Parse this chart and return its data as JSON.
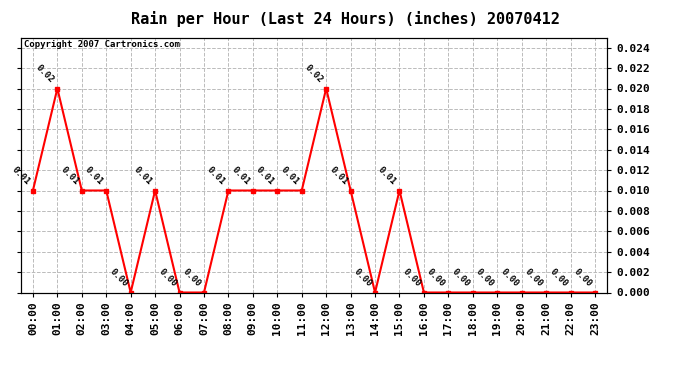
{
  "title": "Rain per Hour (Last 24 Hours) (inches) 20070412",
  "copyright": "Copyright 2007 Cartronics.com",
  "hours": [
    "00:00",
    "01:00",
    "02:00",
    "03:00",
    "04:00",
    "05:00",
    "06:00",
    "07:00",
    "08:00",
    "09:00",
    "10:00",
    "11:00",
    "12:00",
    "13:00",
    "14:00",
    "15:00",
    "16:00",
    "17:00",
    "18:00",
    "19:00",
    "20:00",
    "21:00",
    "22:00",
    "23:00"
  ],
  "values": [
    0.01,
    0.02,
    0.01,
    0.01,
    0.0,
    0.01,
    0.0,
    0.0,
    0.01,
    0.01,
    0.01,
    0.01,
    0.02,
    0.01,
    0.0,
    0.01,
    0.0,
    0.0,
    0.0,
    0.0,
    0.0,
    0.0,
    0.0,
    0.0
  ],
  "ylim": [
    0.0,
    0.025
  ],
  "yticks": [
    0.0,
    0.002,
    0.004,
    0.006,
    0.008,
    0.01,
    0.012,
    0.014,
    0.016,
    0.018,
    0.02,
    0.022,
    0.024
  ],
  "line_color": "#ff0000",
  "marker_color": "#ff0000",
  "bg_color": "#ffffff",
  "plot_bg_color": "#ffffff",
  "grid_color": "#bbbbbb",
  "title_fontsize": 11,
  "copyright_fontsize": 6.5,
  "label_fontsize": 6.5,
  "tick_fontsize": 8
}
